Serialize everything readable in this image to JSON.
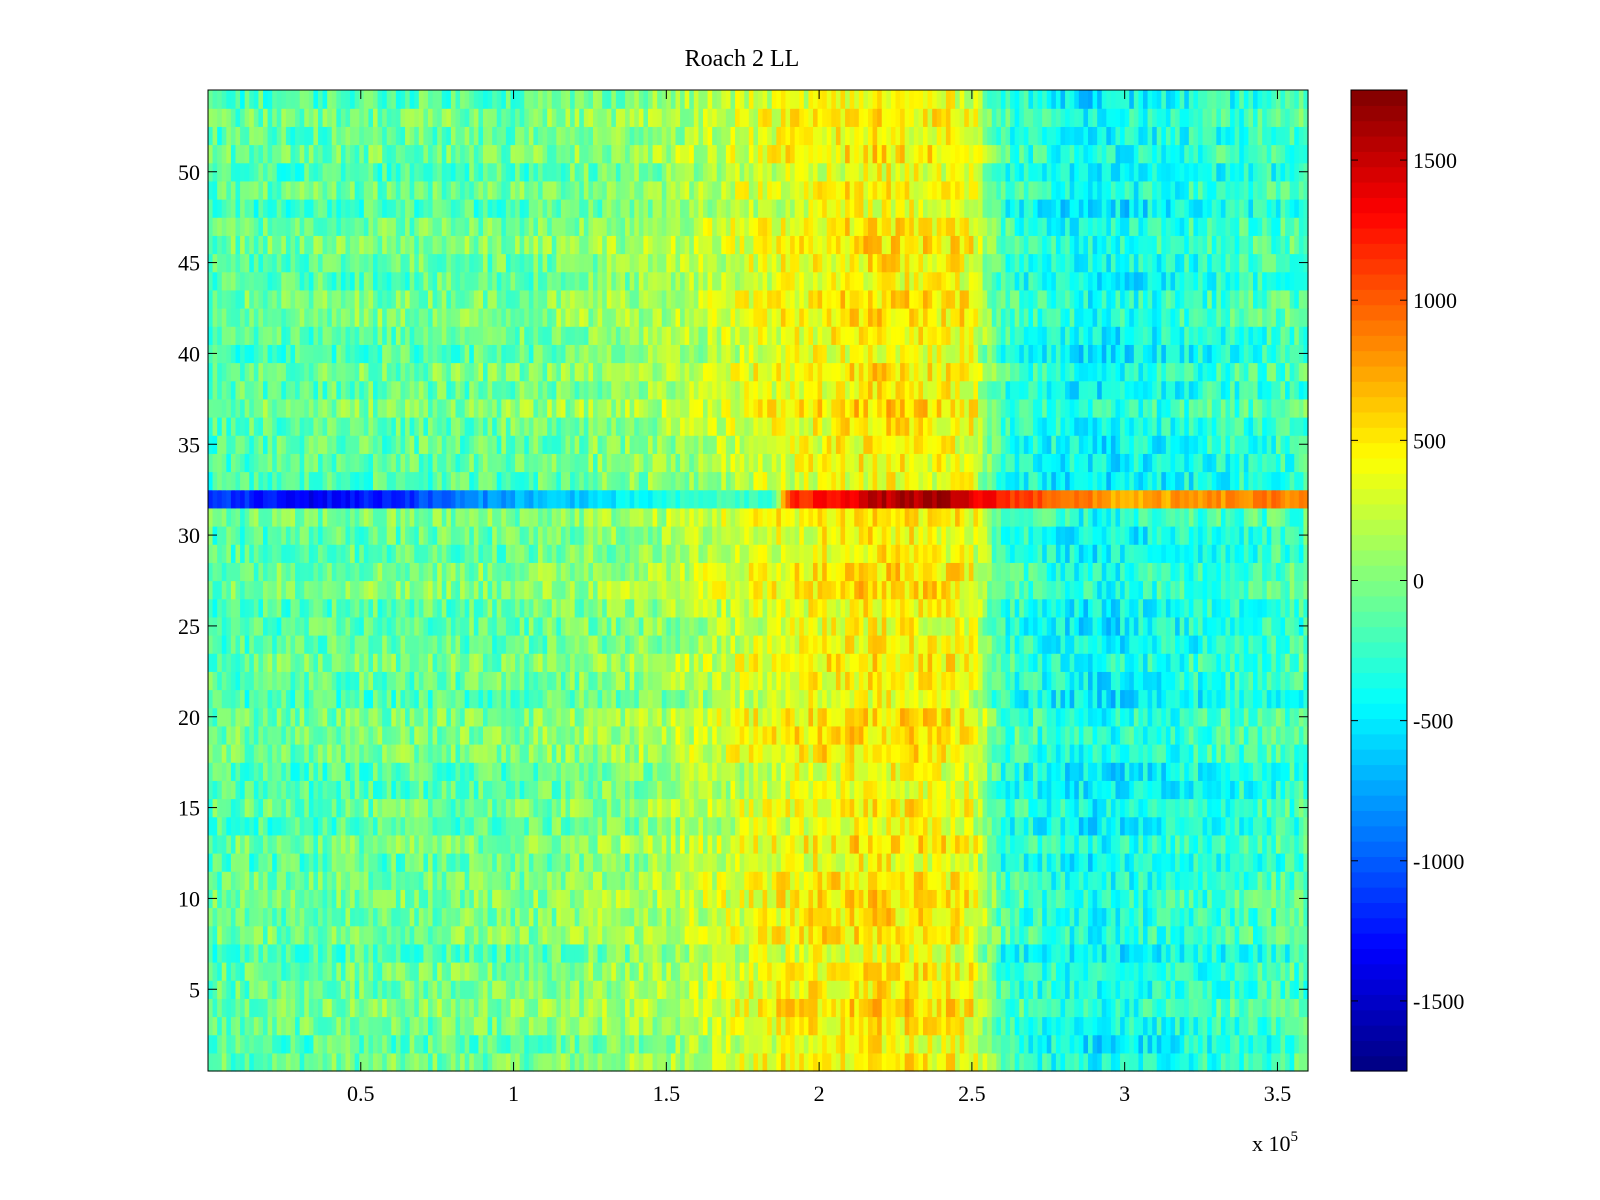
{
  "chart_data": {
    "type": "heatmap",
    "title": "Roach 2 LL",
    "xlabel": "",
    "ylabel": "",
    "x_exponent_label": "x 10",
    "x_exponent_power": "5",
    "xlim": [
      0,
      3.6
    ],
    "ylim": [
      0.5,
      54.5
    ],
    "xticks": [
      0.5,
      1,
      1.5,
      2,
      2.5,
      3,
      3.5
    ],
    "xtick_labels": [
      "0.5",
      "1",
      "1.5",
      "2",
      "2.5",
      "3",
      "3.5"
    ],
    "yticks": [
      5,
      10,
      15,
      20,
      25,
      30,
      35,
      40,
      45,
      50
    ],
    "ytick_labels": [
      "5",
      "10",
      "15",
      "20",
      "25",
      "30",
      "35",
      "40",
      "45",
      "50"
    ],
    "n_rows": 54,
    "colormap": "jet",
    "colorbar": {
      "clim": [
        -1750,
        1750
      ],
      "ticks": [
        -1500,
        -1000,
        -500,
        0,
        500,
        1000,
        1500
      ],
      "tick_labels": [
        "-1500",
        "-1000",
        "-500",
        "0",
        "500",
        "1000",
        "1500"
      ]
    },
    "column_profile": {
      "description": "approximate mean value across rows by x segment (x in units of 1e5)",
      "x": [
        0.0,
        0.5,
        1.0,
        1.5,
        1.7,
        1.9,
        2.2,
        2.5,
        2.6,
        2.9,
        3.3,
        3.6
      ],
      "values": [
        -150,
        -100,
        -80,
        100,
        250,
        380,
        480,
        380,
        -250,
        -450,
        -300,
        -200
      ]
    },
    "anomalous_row": {
      "row": 32,
      "x": [
        0.0,
        0.3,
        0.6,
        1.0,
        1.3,
        1.7,
        1.85,
        1.9,
        2.2,
        2.4,
        2.6,
        3.0,
        3.6
      ],
      "values": [
        -1100,
        -1350,
        -1200,
        -700,
        -550,
        -200,
        -300,
        1100,
        1550,
        1600,
        1200,
        700,
        900
      ]
    }
  }
}
